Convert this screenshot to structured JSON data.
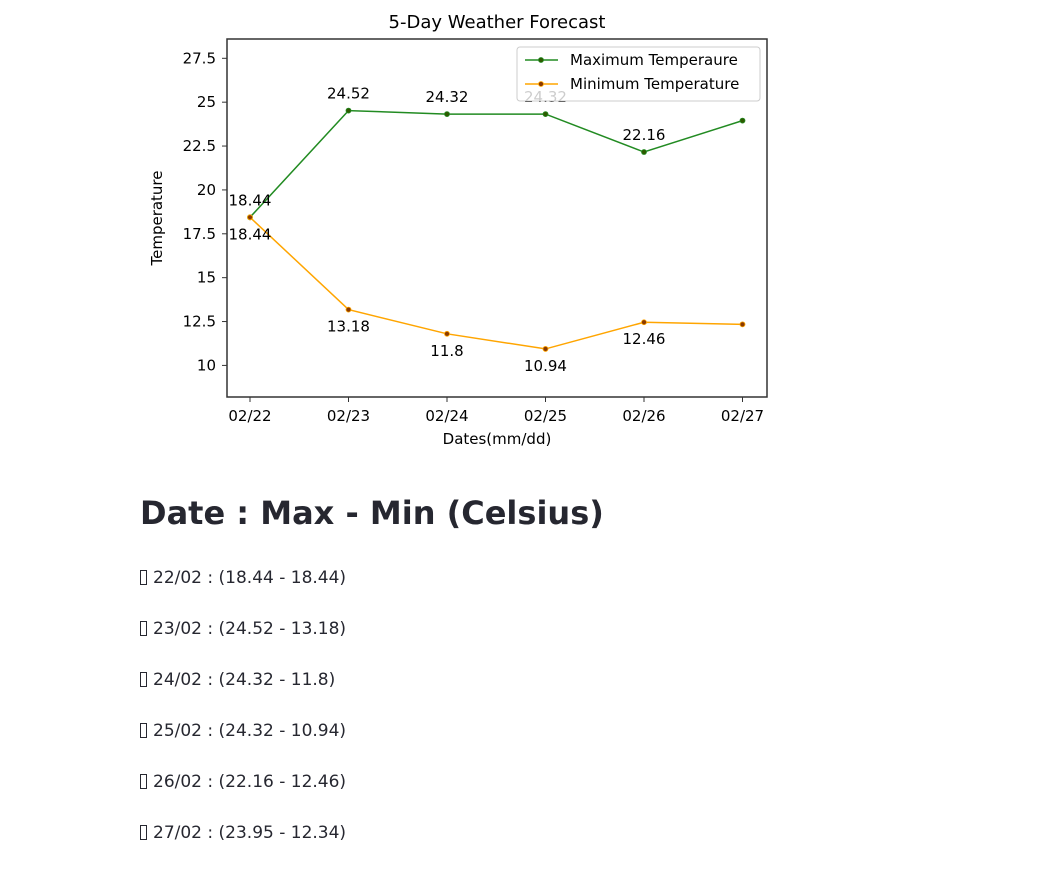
{
  "chart_data": {
    "type": "line",
    "title": "5-Day Weather Forecast",
    "xlabel": "Dates(mm/dd)",
    "ylabel": "Temperature",
    "categories": [
      "02/22",
      "02/23",
      "02/24",
      "02/25",
      "02/26",
      "02/27"
    ],
    "yticks": [
      10.0,
      12.5,
      15.0,
      17.5,
      20.0,
      22.5,
      25.0,
      27.5
    ],
    "ylim": [
      8.2,
      28.6
    ],
    "grid": false,
    "legend_position": "top-right",
    "series": [
      {
        "name": "Maximum Temperaure",
        "color": "#228B22",
        "marker_color": "#2d5a00",
        "values": [
          18.44,
          24.52,
          24.32,
          24.32,
          22.16,
          23.95
        ],
        "labels": [
          "18.44",
          "24.52",
          "24.32",
          "24.32",
          "22.16",
          ""
        ],
        "label_position": "above"
      },
      {
        "name": "Minimum Temperature",
        "color": "#FFA500",
        "marker_color": "#8b3a00",
        "values": [
          18.44,
          13.18,
          11.8,
          10.94,
          12.46,
          12.34
        ],
        "labels": [
          "18.44",
          "13.18",
          "11.8",
          "10.94",
          "12.46",
          ""
        ],
        "label_position": "below"
      }
    ]
  },
  "summary": {
    "heading": "Date : Max - Min (Celsius)",
    "rows": [
      "22/02 : (18.44 - 18.44)",
      "23/02 : (24.52 - 13.18)",
      "24/02 : (24.32 - 11.8)",
      "25/02 : (24.32 - 10.94)",
      "26/02 : (22.16 - 12.46)",
      "27/02 : (23.95 - 12.34)"
    ]
  }
}
